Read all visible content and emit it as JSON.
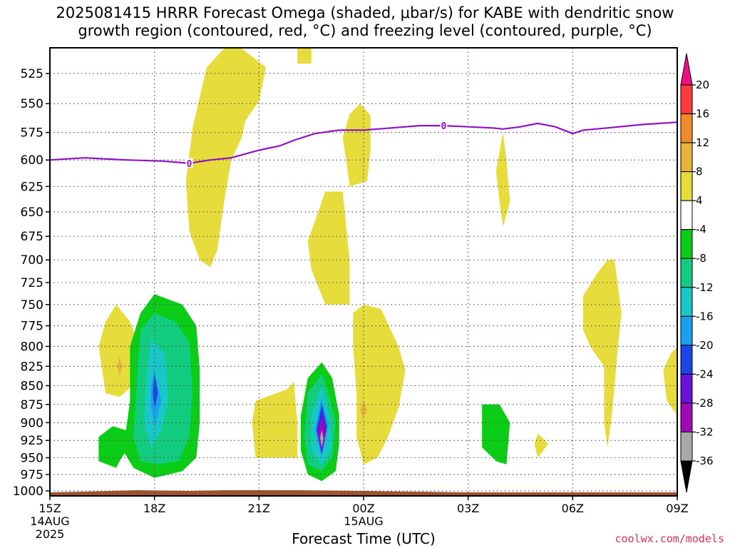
{
  "title_line1": "2025081415 HRRR Forecast Omega (shaded, μbar/s) for KABE with dendritic snow",
  "title_line2": "growth region (contoured, red, °C) and freezing level (contoured, purple, °C)",
  "xlabel": "Forecast Time (UTC)",
  "credit": "coolwx.com/models",
  "chart_data": {
    "type": "time-height cross-section",
    "title": "2025081415 HRRR Forecast Omega (shaded, μbar/s) for KABE with dendritic snow growth region (contoured, red, °C) and freezing level (contoured, purple, °C)",
    "xlabel": "Forecast Time (UTC)",
    "ylabel": "",
    "x_ticks": [
      {
        "hour": 15,
        "label": "15Z",
        "sub": "14AUG",
        "sub2": "2025"
      },
      {
        "hour": 18,
        "label": "18Z"
      },
      {
        "hour": 21,
        "label": "21Z"
      },
      {
        "hour": 24,
        "label": "00Z",
        "sub": "15AUG"
      },
      {
        "hour": 27,
        "label": "03Z"
      },
      {
        "hour": 30,
        "label": "06Z"
      },
      {
        "hour": 33,
        "label": "09Z"
      }
    ],
    "y_ticks": [
      525,
      550,
      575,
      600,
      625,
      650,
      675,
      700,
      725,
      750,
      775,
      800,
      825,
      850,
      875,
      900,
      925,
      950,
      975,
      1000
    ],
    "ylim_hPa": [
      505,
      1005
    ],
    "xlim_hours": [
      15,
      33
    ],
    "grid": true,
    "colorbar": {
      "labels": [
        "20",
        "16",
        "12",
        "8",
        "4",
        "-4",
        "-8",
        "-12",
        "-16",
        "-20",
        "-24",
        "-28",
        "-32",
        "-36"
      ],
      "colors": [
        "#ee1181",
        "#ff3a3a",
        "#f08a2a",
        "#e8b43a",
        "#e6dc3c",
        "#ffffff",
        "#0bcc16",
        "#12cc80",
        "#18c8c8",
        "#1aa0f0",
        "#1a46e8",
        "#6a12d8",
        "#9e0ab8",
        "#a8a8a8",
        "#000000"
      ]
    },
    "freezing_level": {
      "label": "0",
      "color": "#9012c8",
      "points": [
        [
          15,
          600
        ],
        [
          16,
          598
        ],
        [
          17.2,
          600
        ],
        [
          18.2,
          601
        ],
        [
          19.0,
          603
        ],
        [
          19.6,
          600
        ],
        [
          20.2,
          598
        ],
        [
          21.0,
          591
        ],
        [
          21.6,
          587
        ],
        [
          22.0,
          582
        ],
        [
          22.6,
          576
        ],
        [
          23.3,
          573
        ],
        [
          24.0,
          573
        ],
        [
          24.8,
          571
        ],
        [
          25.6,
          569
        ],
        [
          26.3,
          569
        ],
        [
          27.0,
          570
        ],
        [
          27.7,
          571
        ],
        [
          28.0,
          572
        ],
        [
          28.5,
          570
        ],
        [
          29.0,
          567
        ],
        [
          29.5,
          570
        ],
        [
          30.0,
          576
        ],
        [
          30.3,
          573
        ],
        [
          31.0,
          571
        ],
        [
          32.0,
          568
        ],
        [
          33.0,
          566
        ]
      ]
    },
    "omega_areas": [
      {
        "level": "4",
        "color": "#e6dc3c",
        "pts": [
          [
            20.0,
            505
          ],
          [
            20.5,
            505
          ],
          [
            21.2,
            520
          ],
          [
            21.0,
            548
          ],
          [
            20.6,
            565
          ],
          [
            20.5,
            580
          ],
          [
            20.2,
            600
          ],
          [
            20.0,
            640
          ],
          [
            19.8,
            690
          ],
          [
            19.6,
            708
          ],
          [
            19.3,
            700
          ],
          [
            19.0,
            670
          ],
          [
            18.9,
            620
          ],
          [
            19.1,
            570
          ],
          [
            19.5,
            520
          ]
        ]
      },
      {
        "level": "4",
        "color": "#e6dc3c",
        "pts": [
          [
            22.1,
            505
          ],
          [
            22.5,
            505
          ],
          [
            22.5,
            517
          ],
          [
            22.1,
            517
          ]
        ]
      },
      {
        "level": "4",
        "color": "#e6dc3c",
        "pts": [
          [
            23.6,
            559
          ],
          [
            23.9,
            550
          ],
          [
            24.2,
            560
          ],
          [
            24.2,
            590
          ],
          [
            24.1,
            620
          ],
          [
            23.6,
            625
          ],
          [
            23.5,
            600
          ],
          [
            23.4,
            580
          ]
        ]
      },
      {
        "level": "4",
        "color": "#e6dc3c",
        "pts": [
          [
            22.9,
            630
          ],
          [
            23.4,
            630
          ],
          [
            23.6,
            700
          ],
          [
            23.6,
            750
          ],
          [
            22.9,
            750
          ],
          [
            22.5,
            710
          ],
          [
            22.4,
            680
          ],
          [
            22.7,
            650
          ]
        ]
      },
      {
        "level": "4",
        "color": "#e6dc3c",
        "pts": [
          [
            28.0,
            575
          ],
          [
            28.1,
            600
          ],
          [
            28.2,
            640
          ],
          [
            28.0,
            665
          ],
          [
            27.9,
            640
          ],
          [
            27.8,
            610
          ]
        ]
      },
      {
        "level": "4",
        "color": "#e6dc3c",
        "pts": [
          [
            31.0,
            700
          ],
          [
            31.2,
            700
          ],
          [
            31.4,
            760
          ],
          [
            31.3,
            800
          ],
          [
            31.2,
            850
          ],
          [
            31.1,
            900
          ],
          [
            31.0,
            935
          ],
          [
            30.9,
            900
          ],
          [
            30.9,
            825
          ],
          [
            30.5,
            800
          ],
          [
            30.3,
            780
          ],
          [
            30.3,
            740
          ],
          [
            30.7,
            715
          ]
        ]
      },
      {
        "level": "4",
        "color": "#e6dc3c",
        "pts": [
          [
            33.0,
            800
          ],
          [
            33.0,
            890
          ],
          [
            32.7,
            870
          ],
          [
            32.6,
            830
          ],
          [
            32.8,
            810
          ]
        ]
      },
      {
        "level": "4",
        "color": "#e6dc3c",
        "pts": [
          [
            16.9,
            750
          ],
          [
            17.3,
            770
          ],
          [
            17.7,
            815
          ],
          [
            17.5,
            845
          ],
          [
            17.0,
            865
          ],
          [
            16.6,
            860
          ],
          [
            16.4,
            800
          ],
          [
            16.6,
            770
          ]
        ]
      },
      {
        "level": "4",
        "color": "#e6dc3c",
        "pts": [
          [
            24.0,
            750
          ],
          [
            24.5,
            755
          ],
          [
            25.0,
            800
          ],
          [
            25.2,
            830
          ],
          [
            25.0,
            880
          ],
          [
            24.7,
            920
          ],
          [
            24.4,
            950
          ],
          [
            24.0,
            960
          ],
          [
            23.8,
            920
          ],
          [
            23.8,
            860
          ],
          [
            23.7,
            800
          ],
          [
            23.7,
            760
          ]
        ]
      },
      {
        "level": "4",
        "color": "#e6dc3c",
        "pts": [
          [
            21.8,
            855
          ],
          [
            22.0,
            845
          ],
          [
            22.1,
            900
          ],
          [
            22.1,
            950
          ],
          [
            21.5,
            950
          ],
          [
            20.9,
            950
          ],
          [
            20.8,
            900
          ],
          [
            20.9,
            870
          ]
        ]
      },
      {
        "level": "4",
        "color": "#e6dc3c",
        "pts": [
          [
            29.0,
            915
          ],
          [
            29.3,
            930
          ],
          [
            29.0,
            950
          ],
          [
            28.9,
            930
          ]
        ]
      },
      {
        "level": "-4",
        "color": "#0bcc16",
        "pts": [
          [
            18.0,
            738
          ],
          [
            18.8,
            750
          ],
          [
            19.2,
            775
          ],
          [
            19.3,
            830
          ],
          [
            19.3,
            900
          ],
          [
            19.2,
            950
          ],
          [
            18.8,
            970
          ],
          [
            18.0,
            980
          ],
          [
            17.4,
            965
          ],
          [
            17.1,
            940
          ],
          [
            17.3,
            870
          ],
          [
            17.3,
            800
          ],
          [
            17.6,
            760
          ]
        ]
      },
      {
        "level": "-4",
        "color": "#0bcc16",
        "pts": [
          [
            16.8,
            905
          ],
          [
            17.5,
            915
          ],
          [
            17.0,
            955
          ],
          [
            16.9,
            965
          ],
          [
            16.4,
            955
          ],
          [
            16.4,
            920
          ]
        ]
      },
      {
        "level": "-4",
        "color": "#0bcc16",
        "pts": [
          [
            22.8,
            820
          ],
          [
            23.1,
            840
          ],
          [
            23.3,
            890
          ],
          [
            23.3,
            930
          ],
          [
            23.2,
            970
          ],
          [
            22.8,
            985
          ],
          [
            22.4,
            975
          ],
          [
            22.2,
            940
          ],
          [
            22.2,
            890
          ],
          [
            22.4,
            840
          ]
        ]
      },
      {
        "level": "-4",
        "color": "#0bcc16",
        "pts": [
          [
            27.4,
            875
          ],
          [
            27.9,
            875
          ],
          [
            28.2,
            900
          ],
          [
            28.1,
            960
          ],
          [
            27.8,
            955
          ],
          [
            27.4,
            935
          ]
        ]
      },
      {
        "level": "-8",
        "color": "#12cc80",
        "pts": [
          [
            18.0,
            760
          ],
          [
            18.6,
            770
          ],
          [
            19.0,
            795
          ],
          [
            19.1,
            860
          ],
          [
            19.0,
            920
          ],
          [
            18.7,
            955
          ],
          [
            18.1,
            960
          ],
          [
            17.6,
            955
          ],
          [
            17.4,
            920
          ],
          [
            17.5,
            840
          ],
          [
            17.6,
            780
          ]
        ]
      },
      {
        "level": "-8",
        "color": "#12cc80",
        "pts": [
          [
            22.8,
            835
          ],
          [
            23.0,
            860
          ],
          [
            23.2,
            900
          ],
          [
            23.1,
            950
          ],
          [
            22.8,
            970
          ],
          [
            22.4,
            960
          ],
          [
            22.3,
            920
          ],
          [
            22.4,
            860
          ]
        ]
      },
      {
        "level": "-12",
        "color": "#18c8c8",
        "pts": [
          [
            17.9,
            790
          ],
          [
            18.3,
            810
          ],
          [
            18.4,
            870
          ],
          [
            18.2,
            910
          ],
          [
            17.9,
            935
          ],
          [
            17.7,
            900
          ],
          [
            17.8,
            830
          ]
        ]
      },
      {
        "level": "-12",
        "color": "#18c8c8",
        "pts": [
          [
            22.8,
            850
          ],
          [
            23.0,
            890
          ],
          [
            23.1,
            935
          ],
          [
            22.8,
            960
          ],
          [
            22.5,
            940
          ],
          [
            22.5,
            890
          ]
        ]
      },
      {
        "level": "-16",
        "color": "#1aa0f0",
        "pts": [
          [
            18.0,
            830
          ],
          [
            18.2,
            870
          ],
          [
            18.0,
            905
          ],
          [
            17.9,
            880
          ],
          [
            17.9,
            850
          ]
        ]
      },
      {
        "level": "-16",
        "color": "#1aa0f0",
        "pts": [
          [
            22.8,
            865
          ],
          [
            23.0,
            905
          ],
          [
            22.8,
            950
          ],
          [
            22.6,
            910
          ]
        ]
      },
      {
        "level": "-20",
        "color": "#1a46e8",
        "pts": [
          [
            18.0,
            835
          ],
          [
            18.1,
            860
          ],
          [
            18.0,
            880
          ],
          [
            17.95,
            860
          ]
        ]
      },
      {
        "level": "-20",
        "color": "#1a46e8",
        "pts": [
          [
            22.8,
            875
          ],
          [
            22.95,
            905
          ],
          [
            22.8,
            945
          ],
          [
            22.65,
            910
          ]
        ]
      },
      {
        "level": "-24",
        "color": "#6a12d8",
        "pts": [
          [
            22.8,
            885
          ],
          [
            22.93,
            910
          ],
          [
            22.8,
            942
          ],
          [
            22.67,
            912
          ]
        ]
      },
      {
        "level": "-28",
        "color": "#9e0ab8",
        "pts": [
          [
            22.8,
            895
          ],
          [
            22.9,
            915
          ],
          [
            22.8,
            938
          ],
          [
            22.7,
            915
          ]
        ]
      },
      {
        "level": "-32",
        "color": "#a8a8a8",
        "pts": [
          [
            22.8,
            910
          ],
          [
            22.85,
            922
          ],
          [
            22.8,
            935
          ],
          [
            22.75,
            922
          ]
        ]
      },
      {
        "level": "8",
        "color": "#e8b43a",
        "pts": [
          [
            17.0,
            813
          ],
          [
            17.07,
            825
          ],
          [
            17.0,
            838
          ],
          [
            16.93,
            825
          ]
        ]
      },
      {
        "level": "8",
        "color": "#e8b43a",
        "pts": [
          [
            24.0,
            870
          ],
          [
            24.1,
            882
          ],
          [
            24.0,
            895
          ],
          [
            23.9,
            882
          ]
        ]
      }
    ],
    "ground": {
      "color": "#a0522d"
    }
  }
}
